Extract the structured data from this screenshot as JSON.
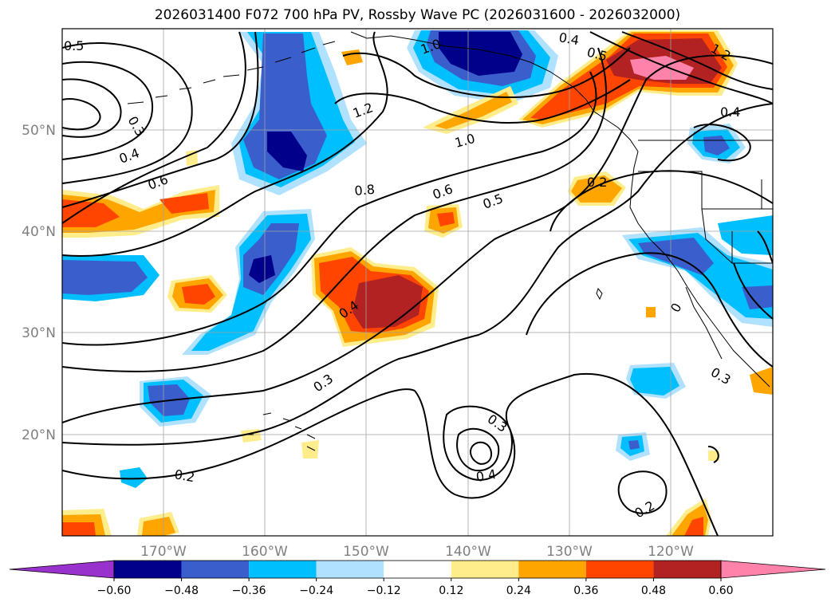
{
  "title": "2026031400 F072 700 hPa PV, Rossby Wave PC (2026031600 - 2026032000)",
  "latitude_labels": [
    "50°N",
    "40°N",
    "30°N",
    "20°N"
  ],
  "longitude_labels": [
    "170°W",
    "160°W",
    "150°W",
    "140°W",
    "130°W",
    "120°W"
  ],
  "contour_labels": [
    {
      "text": "0.5"
    },
    {
      "text": "0.3"
    },
    {
      "text": "0.4"
    },
    {
      "text": "0.6"
    },
    {
      "text": "1.0"
    },
    {
      "text": "1.2"
    },
    {
      "text": "1.0"
    },
    {
      "text": "0.8"
    },
    {
      "text": "0.6"
    },
    {
      "text": "0.5"
    },
    {
      "text": "0.4"
    },
    {
      "text": "0.5"
    },
    {
      "text": "1.2"
    },
    {
      "text": "0.4"
    },
    {
      "text": "0.2"
    },
    {
      "text": "0.4"
    },
    {
      "text": "0.3"
    },
    {
      "text": "0.3"
    },
    {
      "text": "0.4"
    },
    {
      "text": "0.2"
    },
    {
      "text": "0.2"
    },
    {
      "text": "0.3"
    },
    {
      "text": "0"
    }
  ],
  "colorbar": {
    "tick_labels": [
      "−0.60",
      "−0.48",
      "−0.36",
      "−0.24",
      "−0.12",
      "0.12",
      "0.24",
      "0.36",
      "0.48",
      "0.60"
    ],
    "colors": [
      "#9932cc",
      "#00008b",
      "#3a5fcd",
      "#00bfff",
      "#b0e2ff",
      "#ffffff",
      "#ffec8b",
      "#ffa500",
      "#ff4500",
      "#b22222",
      "#ff82ab"
    ]
  },
  "colors": {
    "land_outline": "#000000",
    "grid": "#a0a0a0",
    "contour": "#000000"
  }
}
